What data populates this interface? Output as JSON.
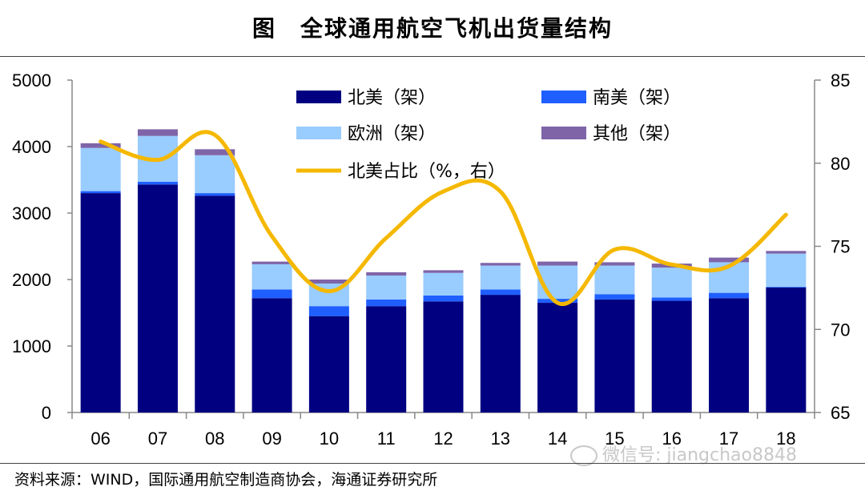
{
  "title": "图　全球通用航空飞机出货量结构",
  "source": "资料来源：WIND，国际通用航空制造商协会，海通证券研究所",
  "watermark": "微信号: jiangchao8848",
  "chart_data": {
    "type": "bar",
    "stacked": true,
    "categories": [
      "06",
      "07",
      "08",
      "09",
      "10",
      "11",
      "12",
      "13",
      "14",
      "15",
      "16",
      "17",
      "18"
    ],
    "series": [
      {
        "name": "北美（架）",
        "color": "#000080",
        "axis": "left",
        "values": [
          3300,
          3430,
          3260,
          1720,
          1450,
          1600,
          1670,
          1770,
          1650,
          1700,
          1680,
          1720,
          1880
        ]
      },
      {
        "name": "南美（架）",
        "color": "#1f5fff",
        "axis": "left",
        "values": [
          30,
          40,
          40,
          130,
          150,
          100,
          90,
          80,
          60,
          80,
          50,
          80,
          10
        ]
      },
      {
        "name": "欧洲（架）",
        "color": "#99ccff",
        "axis": "left",
        "values": [
          650,
          690,
          570,
          380,
          340,
          360,
          340,
          360,
          500,
          430,
          450,
          460,
          500
        ]
      },
      {
        "name": "其他（架）",
        "color": "#7f64a8",
        "axis": "left",
        "values": [
          70,
          100,
          90,
          40,
          60,
          50,
          40,
          40,
          60,
          50,
          60,
          70,
          40
        ]
      }
    ],
    "line": {
      "name": "北美占比（%，右）",
      "color": "#f5b800",
      "axis": "right",
      "values": [
        81.3,
        80.2,
        81.7,
        75.6,
        72.3,
        75.5,
        78.3,
        78.3,
        71.6,
        74.8,
        73.9,
        73.8,
        76.9
      ]
    },
    "y_left": {
      "min": 0,
      "max": 5000,
      "ticks": [
        "0",
        "1000",
        "2000",
        "3000",
        "4000",
        "5000"
      ]
    },
    "y_right": {
      "min": 65,
      "max": 85,
      "ticks": [
        "65",
        "70",
        "75",
        "80",
        "85"
      ]
    },
    "legend_position": "top-center"
  }
}
